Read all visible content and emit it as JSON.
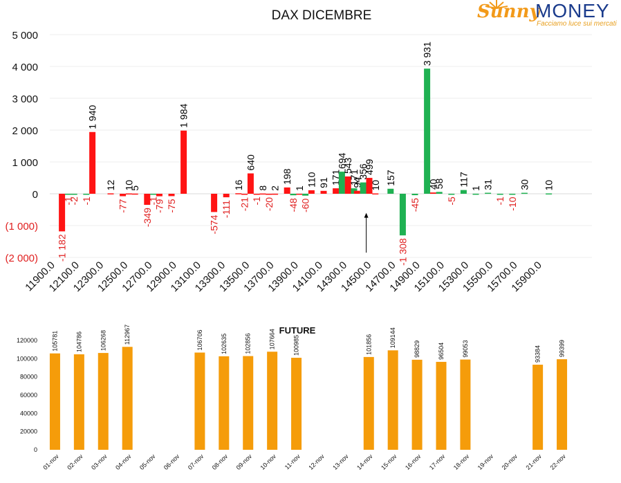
{
  "brand": {
    "logo_text_1": "Sunny",
    "logo_text_2": "MONEY",
    "tagline": "Facciamo luce sui mercati"
  },
  "chart_data": [
    {
      "type": "bar",
      "title": "DAX DICEMBRE",
      "ylim": [
        -2000,
        5000
      ],
      "yticks": [
        5000,
        4000,
        3000,
        2000,
        1000,
        0,
        -1000,
        -2000
      ],
      "ytick_labels": [
        "5 000",
        "4 000",
        "3 000",
        "2 000",
        "1 000",
        "0",
        "(1 000)",
        "(2 000)"
      ],
      "xtick_labels": [
        "11900.0",
        "12100.0",
        "12300.0",
        "12500.0",
        "12700.0",
        "12900.0",
        "13100.0",
        "13300.0",
        "13500.0",
        "13700.0",
        "13900.0",
        "14100.0",
        "14300.0",
        "14500.0",
        "14700.0",
        "14900.0",
        "15100.0",
        "15300.0",
        "15500.0",
        "15700.0",
        "15900.0"
      ],
      "xlim": [
        11900,
        15900
      ],
      "grid": true,
      "colors": {
        "positive_label": "#000000",
        "negative_label": "#e02020",
        "red": "#ff1414",
        "green": "#1fb152"
      },
      "annotation": {
        "type": "arrow",
        "x": 14500,
        "y_from": -1850,
        "y_to": -600
      },
      "bars": [
        {
          "x": 12000,
          "value": -1182,
          "color": "red",
          "label": "-1 182"
        },
        {
          "x": 12050,
          "value": -1,
          "color": "green",
          "label": "-1"
        },
        {
          "x": 12100,
          "value": -2,
          "color": "green",
          "label": "-2"
        },
        {
          "x": 12200,
          "value": -1,
          "color": "green",
          "label": "-1"
        },
        {
          "x": 12250,
          "value": 1940,
          "color": "red",
          "label": "1 940"
        },
        {
          "x": 12400,
          "value": 12,
          "color": "red",
          "label": "12"
        },
        {
          "x": 12500,
          "value": -77,
          "color": "red",
          "label": "-77"
        },
        {
          "x": 12550,
          "value": 10,
          "color": "red",
          "label": "10"
        },
        {
          "x": 12600,
          "value": 5,
          "color": "red",
          "label": "5"
        },
        {
          "x": 12700,
          "value": -349,
          "color": "red",
          "label": "-349"
        },
        {
          "x": 12750,
          "value": -1,
          "color": "green",
          "label": "-1"
        },
        {
          "x": 12800,
          "value": -79,
          "color": "red",
          "label": "-79"
        },
        {
          "x": 12900,
          "value": -75,
          "color": "red",
          "label": "-75"
        },
        {
          "x": 13000,
          "value": 1984,
          "color": "red",
          "label": "1 984"
        },
        {
          "x": 13250,
          "value": -574,
          "color": "red",
          "label": "-574"
        },
        {
          "x": 13350,
          "value": -111,
          "color": "red",
          "label": "-111"
        },
        {
          "x": 13450,
          "value": 16,
          "color": "red",
          "label": "16"
        },
        {
          "x": 13500,
          "value": -21,
          "color": "red",
          "label": "-21"
        },
        {
          "x": 13550,
          "value": 640,
          "color": "red",
          "label": "640"
        },
        {
          "x": 13600,
          "value": -1,
          "color": "red",
          "label": "-1"
        },
        {
          "x": 13650,
          "value": 8,
          "color": "red",
          "label": "8"
        },
        {
          "x": 13700,
          "value": -20,
          "color": "red",
          "label": "-20"
        },
        {
          "x": 13750,
          "value": 2,
          "color": "red",
          "label": "2"
        },
        {
          "x": 13850,
          "value": 198,
          "color": "red",
          "label": "198"
        },
        {
          "x": 13900,
          "value": -48,
          "color": "green",
          "label": "-48"
        },
        {
          "x": 13950,
          "value": 1,
          "color": "red",
          "label": "1"
        },
        {
          "x": 14000,
          "value": -60,
          "color": "green",
          "label": "-60"
        },
        {
          "x": 14050,
          "value": 110,
          "color": "red",
          "label": "110"
        },
        {
          "x": 14150,
          "value": 91,
          "color": "red",
          "label": "91"
        },
        {
          "x": 14250,
          "value": 171,
          "color": "red",
          "label": "171"
        },
        {
          "x": 14300,
          "value": 694,
          "color": "green",
          "label": "694"
        },
        {
          "x": 14350,
          "value": 543,
          "color": "red",
          "label": "543"
        },
        {
          "x": 14400,
          "value": 171,
          "color": "green",
          "label": "171"
        },
        {
          "x": 14425,
          "value": 94,
          "color": "red",
          "label": "94"
        },
        {
          "x": 14475,
          "value": 356,
          "color": "green",
          "label": "356"
        },
        {
          "x": 14525,
          "value": 499,
          "color": "red",
          "label": "499"
        },
        {
          "x": 14575,
          "value": 10,
          "color": "red",
          "label": "10"
        },
        {
          "x": 14700,
          "value": 157,
          "color": "green",
          "label": "157"
        },
        {
          "x": 14800,
          "value": -1308,
          "color": "green",
          "label": "-1 308"
        },
        {
          "x": 14900,
          "value": -45,
          "color": "green",
          "label": "-45"
        },
        {
          "x": 15000,
          "value": 3931,
          "color": "green",
          "label": "3 931"
        },
        {
          "x": 15050,
          "value": 40,
          "color": "red",
          "label": "40"
        },
        {
          "x": 15100,
          "value": 58,
          "color": "green",
          "label": "58"
        },
        {
          "x": 15200,
          "value": -5,
          "color": "green",
          "label": "-5"
        },
        {
          "x": 15300,
          "value": 117,
          "color": "green",
          "label": "117"
        },
        {
          "x": 15400,
          "value": 1,
          "color": "green",
          "label": "1"
        },
        {
          "x": 15500,
          "value": 31,
          "color": "green",
          "label": "31"
        },
        {
          "x": 15600,
          "value": -1,
          "color": "green",
          "label": "-1"
        },
        {
          "x": 15700,
          "value": -10,
          "color": "green",
          "label": "-10"
        },
        {
          "x": 15800,
          "value": 30,
          "color": "green",
          "label": "30"
        },
        {
          "x": 16000,
          "value": 10,
          "color": "green",
          "label": "10"
        }
      ]
    },
    {
      "type": "bar",
      "title": "FUTURE",
      "ylim": [
        0,
        120000
      ],
      "yticks": [
        0,
        20000,
        40000,
        60000,
        80000,
        100000,
        120000
      ],
      "ytick_labels": [
        "0",
        "20000",
        "40000",
        "60000",
        "80000",
        "100000",
        "120000"
      ],
      "color": "#f59c0a",
      "categories": [
        "01-nov",
        "02-nov",
        "03-nov",
        "04-nov",
        "05-nov",
        "06-nov",
        "07-nov",
        "08-nov",
        "09-nov",
        "10-nov",
        "11-nov",
        "12-nov",
        "13-nov",
        "14-nov",
        "15-nov",
        "16-nov",
        "17-nov",
        "18-nov",
        "19-nov",
        "20-nov",
        "21-nov",
        "22-nov"
      ],
      "values": [
        105781,
        104786,
        106268,
        112967,
        null,
        null,
        106706,
        102635,
        102856,
        107664,
        100985,
        null,
        null,
        101856,
        109144,
        98829,
        96504,
        99053,
        null,
        null,
        93384,
        99399
      ]
    }
  ]
}
